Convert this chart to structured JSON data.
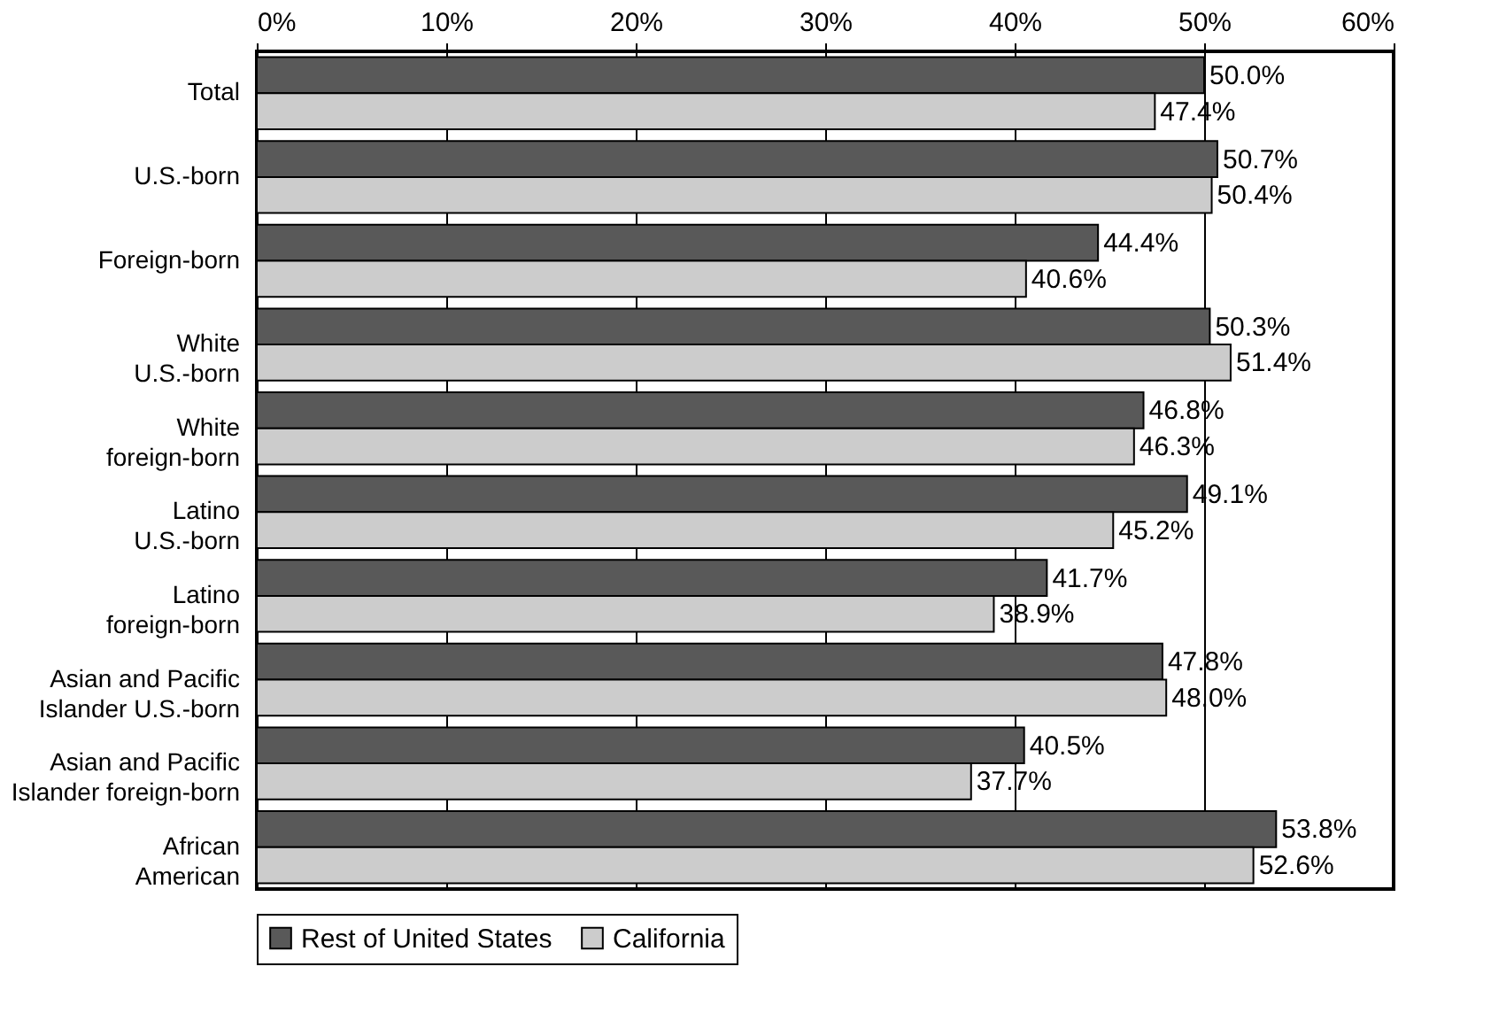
{
  "chart_data": {
    "type": "bar",
    "orientation": "horizontal",
    "categories": [
      "Total",
      "U.S.-born",
      "Foreign-born",
      "White\nU.S.-born",
      "White\nforeign-born",
      "Latino\nU.S.-born",
      "Latino\nforeign-born",
      "Asian and Pacific\nIslander U.S.-born",
      "Asian and Pacific\nIslander foreign-born",
      "African\nAmerican"
    ],
    "series": [
      {
        "name": "Rest of United States",
        "color": "#595959",
        "values": [
          50.0,
          50.7,
          44.4,
          50.3,
          46.8,
          49.1,
          41.7,
          47.8,
          40.5,
          53.8
        ],
        "value_labels": [
          "50.0%",
          "50.7%",
          "44.4%",
          "50.3%",
          "46.8%",
          "49.1%",
          "41.7%",
          "47.8%",
          "40.5%",
          "53.8%"
        ]
      },
      {
        "name": "California",
        "color": "#cccccc",
        "values": [
          47.4,
          50.4,
          40.6,
          51.4,
          46.3,
          45.2,
          38.9,
          48.0,
          37.7,
          52.6
        ],
        "value_labels": [
          "47.4%",
          "50.4%",
          "40.6%",
          "51.4%",
          "46.3%",
          "45.2%",
          "38.9%",
          "48.0%",
          "37.7%",
          "52.6%"
        ]
      }
    ],
    "xlim": [
      0,
      60
    ],
    "xticks": [
      {
        "value": 0,
        "label": "0%"
      },
      {
        "value": 10,
        "label": "10%"
      },
      {
        "value": 20,
        "label": "20%"
      },
      {
        "value": 30,
        "label": "30%"
      },
      {
        "value": 40,
        "label": "40%"
      },
      {
        "value": 50,
        "label": "50%"
      },
      {
        "value": 60,
        "label": "60%"
      }
    ],
    "grid": "x",
    "legend": "bottom"
  }
}
